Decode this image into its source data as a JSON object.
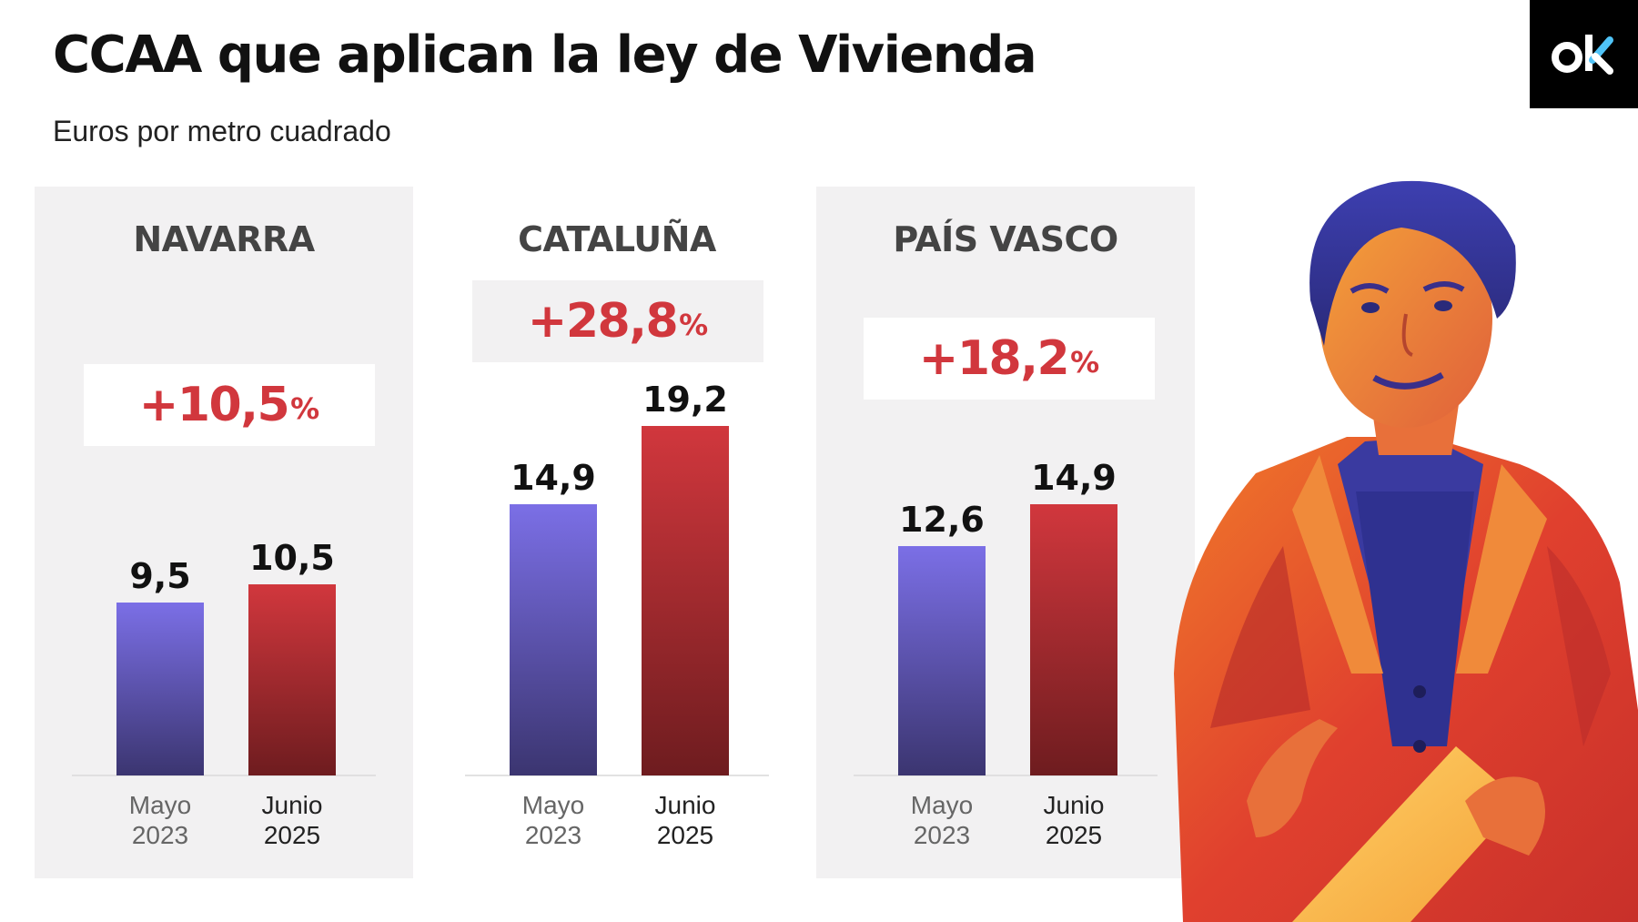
{
  "title": "CCAA que aplican la ley de Vivienda",
  "subtitle": "Euros por metro cuadrado",
  "logo_text": "ok",
  "colors": {
    "before": "#7b6fe6",
    "after": "#d1373d",
    "accent": "#d1373d"
  },
  "chart_data": [
    {
      "type": "bar",
      "title": "NAVARRA",
      "change": "+10,5",
      "change_unit": "%",
      "categories": [
        "Mayo 2023",
        "Junio 2025"
      ],
      "category_lines": [
        [
          "Mayo",
          "2023"
        ],
        [
          "Junio",
          "2025"
        ]
      ],
      "values": [
        9.5,
        10.5
      ],
      "value_labels": [
        "9,5",
        "10,5"
      ],
      "ylabel": "Euros por metro cuadrado",
      "grid": false
    },
    {
      "type": "bar",
      "title": "CATALUÑA",
      "change": "+28,8",
      "change_unit": "%",
      "categories": [
        "Mayo 2023",
        "Junio 2025"
      ],
      "category_lines": [
        [
          "Mayo",
          "2023"
        ],
        [
          "Junio",
          "2025"
        ]
      ],
      "values": [
        14.9,
        19.2
      ],
      "value_labels": [
        "14,9",
        "19,2"
      ],
      "ylabel": "Euros por metro cuadrado",
      "grid": false
    },
    {
      "type": "bar",
      "title": "PAÍS VASCO",
      "change": "+18,2",
      "change_unit": "%",
      "categories": [
        "Mayo 2023",
        "Junio 2025"
      ],
      "category_lines": [
        [
          "Mayo",
          "2023"
        ],
        [
          "Junio",
          "2025"
        ]
      ],
      "values": [
        12.6,
        14.9
      ],
      "value_labels": [
        "12,6",
        "14,9"
      ],
      "ylabel": "Euros por metro cuadrado",
      "grid": false
    }
  ]
}
